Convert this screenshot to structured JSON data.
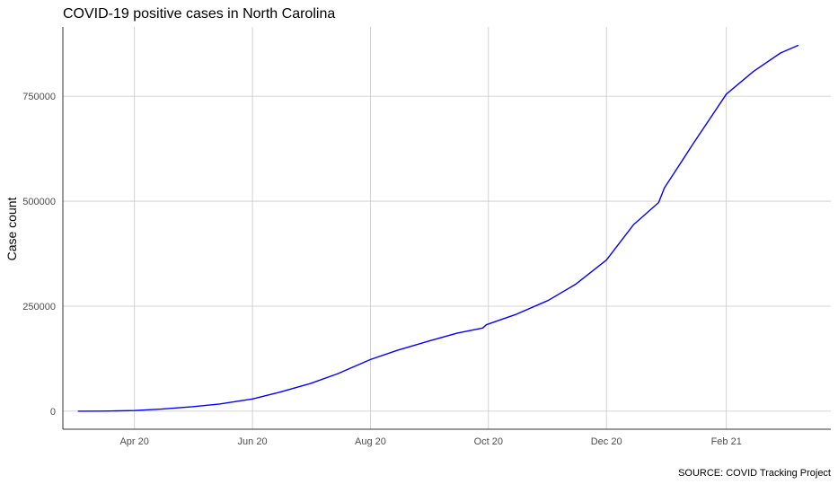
{
  "chart_data": {
    "type": "line",
    "title": "COVID-19 positive cases in North Carolina",
    "xlabel": "",
    "ylabel": "Case count",
    "caption": "SOURCE: COVID Tracking Project",
    "x_ticks": [
      "Apr 20",
      "Jun 20",
      "Aug 20",
      "Oct 20",
      "Dec 20",
      "Feb 21"
    ],
    "x_tick_dates": [
      "2020-04-01",
      "2020-06-01",
      "2020-08-01",
      "2020-10-01",
      "2020-12-01",
      "2021-02-01"
    ],
    "y_ticks": [
      "0",
      "250000",
      "500000",
      "750000"
    ],
    "y_tick_values": [
      0,
      250000,
      500000,
      750000
    ],
    "xlim": [
      "2020-02-24",
      "2021-03-27"
    ],
    "ylim": [
      -43000,
      915000
    ],
    "grid": true,
    "series": [
      {
        "color": "#0000ff",
        "points": [
          [
            "2020-03-03",
            0
          ],
          [
            "2020-03-17",
            100
          ],
          [
            "2020-04-01",
            1600
          ],
          [
            "2020-04-15",
            5000
          ],
          [
            "2020-05-01",
            10500
          ],
          [
            "2020-05-15",
            17000
          ],
          [
            "2020-06-01",
            29000
          ],
          [
            "2020-06-15",
            45000
          ],
          [
            "2020-07-01",
            66000
          ],
          [
            "2020-07-15",
            89000
          ],
          [
            "2020-08-01",
            123000
          ],
          [
            "2020-08-15",
            145000
          ],
          [
            "2020-09-01",
            168000
          ],
          [
            "2020-09-15",
            186000
          ],
          [
            "2020-09-28",
            198000
          ],
          [
            "2020-09-30",
            206000
          ],
          [
            "2020-10-15",
            230000
          ],
          [
            "2020-11-01",
            264000
          ],
          [
            "2020-11-15",
            302000
          ],
          [
            "2020-12-01",
            360000
          ],
          [
            "2020-12-15",
            444000
          ],
          [
            "2020-12-28",
            497000
          ],
          [
            "2020-12-31",
            532000
          ],
          [
            "2021-01-04",
            560000
          ],
          [
            "2021-01-15",
            638000
          ],
          [
            "2021-02-01",
            755000
          ],
          [
            "2021-02-15",
            809000
          ],
          [
            "2021-03-01",
            853000
          ],
          [
            "2021-03-10",
            871000
          ]
        ]
      }
    ]
  }
}
